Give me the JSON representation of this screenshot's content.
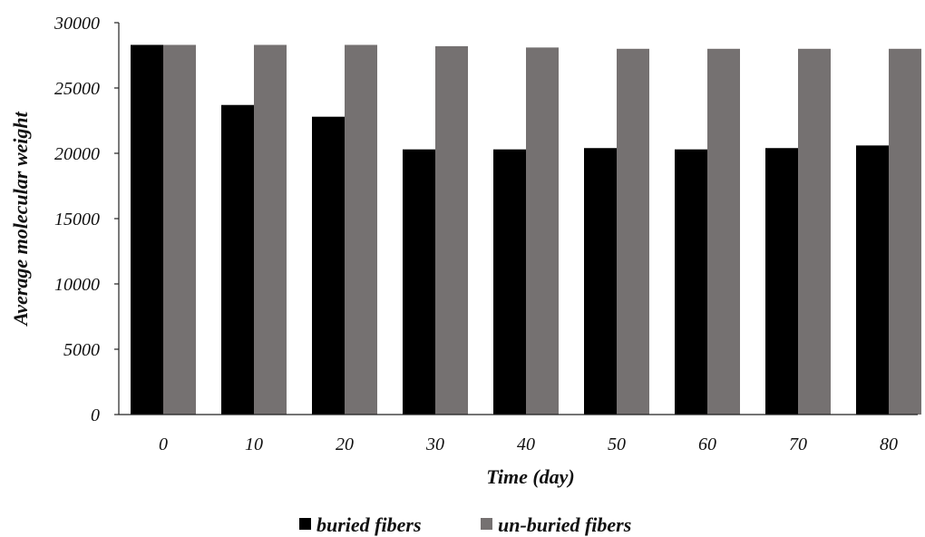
{
  "chart_data": {
    "type": "bar",
    "title": "",
    "xlabel": "Time (day)",
    "ylabel": "Average molecular weight",
    "categories": [
      "0",
      "10",
      "20",
      "30",
      "40",
      "50",
      "60",
      "70",
      "80"
    ],
    "ylim": [
      0,
      30000
    ],
    "yticks": [
      "0",
      "5000",
      "10000",
      "15000",
      "20000",
      "25000",
      "30000"
    ],
    "grid": false,
    "legend_position": "bottom",
    "series": [
      {
        "name": "buried fibers",
        "color": "#000000",
        "values": [
          28300,
          23700,
          22800,
          20300,
          20300,
          20400,
          20300,
          20400,
          20600
        ]
      },
      {
        "name": "un-buried fibers",
        "color": "#757171",
        "values": [
          28300,
          28300,
          28300,
          28200,
          28100,
          28000,
          28000,
          28000,
          28000
        ]
      }
    ]
  }
}
